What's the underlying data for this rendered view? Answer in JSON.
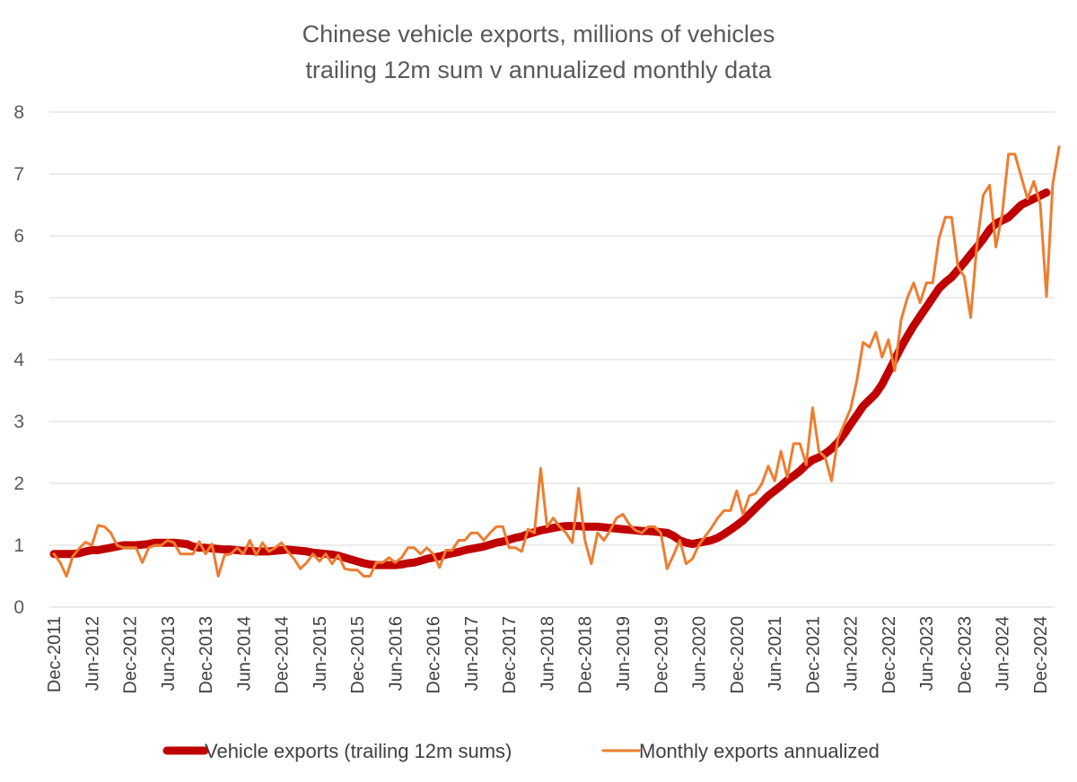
{
  "chart_data": {
    "type": "line",
    "title": [
      "Chinese vehicle exports, millions of vehicles",
      "trailing 12m sum v annualized monthly data"
    ],
    "xlabel": "",
    "ylabel": "",
    "ylim": [
      0,
      8
    ],
    "yticks": [
      "0",
      "1",
      "2",
      "3",
      "4",
      "5",
      "6",
      "7",
      "8"
    ],
    "grid": true,
    "legend_position": "bottom",
    "x_start": "Dec-2011",
    "x_end": "May-2025",
    "x_tick_labels": [
      "Dec-2011",
      "Jun-2012",
      "Dec-2012",
      "Jun-2013",
      "Dec-2013",
      "Jun-2014",
      "Dec-2014",
      "Jun-2015",
      "Dec-2015",
      "Jun-2016",
      "Dec-2016",
      "Jun-2017",
      "Dec-2017",
      "Jun-2018",
      "Dec-2018",
      "Jun-2019",
      "Dec-2019",
      "Jun-2020",
      "Dec-2020",
      "Jun-2021",
      "Dec-2021",
      "Jun-2022",
      "Dec-2022",
      "Jun-2023",
      "Dec-2023",
      "Jun-2024",
      "Dec-2024"
    ],
    "series": [
      {
        "name": "Vehicle exports (trailing 12m sums)",
        "color": "#c00000",
        "line_style": "thick",
        "values": [
          0.86,
          0.86,
          0.86,
          0.86,
          0.87,
          0.9,
          0.92,
          0.92,
          0.94,
          0.96,
          0.98,
          1.0,
          1.0,
          1.0,
          1.01,
          1.02,
          1.04,
          1.04,
          1.04,
          1.04,
          1.03,
          1.02,
          0.98,
          0.96,
          0.96,
          0.95,
          0.94,
          0.93,
          0.93,
          0.92,
          0.91,
          0.91,
          0.9,
          0.9,
          0.9,
          0.91,
          0.92,
          0.93,
          0.92,
          0.91,
          0.9,
          0.88,
          0.87,
          0.86,
          0.85,
          0.83,
          0.8,
          0.77,
          0.74,
          0.71,
          0.69,
          0.68,
          0.68,
          0.68,
          0.68,
          0.69,
          0.71,
          0.72,
          0.75,
          0.78,
          0.8,
          0.82,
          0.85,
          0.87,
          0.89,
          0.92,
          0.94,
          0.96,
          0.98,
          1.01,
          1.04,
          1.06,
          1.09,
          1.12,
          1.14,
          1.18,
          1.21,
          1.24,
          1.26,
          1.28,
          1.3,
          1.31,
          1.31,
          1.31,
          1.3,
          1.3,
          1.3,
          1.29,
          1.28,
          1.27,
          1.26,
          1.25,
          1.24,
          1.23,
          1.23,
          1.22,
          1.21,
          1.2,
          1.15,
          1.08,
          1.04,
          1.02,
          1.04,
          1.06,
          1.08,
          1.12,
          1.18,
          1.25,
          1.32,
          1.4,
          1.5,
          1.6,
          1.7,
          1.8,
          1.88,
          1.96,
          2.05,
          2.12,
          2.2,
          2.3,
          2.38,
          2.42,
          2.48,
          2.56,
          2.66,
          2.8,
          2.95,
          3.1,
          3.25,
          3.35,
          3.45,
          3.6,
          3.8,
          4.0,
          4.2,
          4.38,
          4.55,
          4.7,
          4.85,
          5.0,
          5.15,
          5.25,
          5.33,
          5.45,
          5.57,
          5.7,
          5.82,
          5.95,
          6.1,
          6.2,
          6.25,
          6.3,
          6.4,
          6.5,
          6.55,
          6.6,
          6.65,
          6.7
        ]
      },
      {
        "name": "Monthly exports annualized",
        "color": "#ed7d31",
        "line_style": "thin",
        "values": [
          0.86,
          0.72,
          0.5,
          0.82,
          0.95,
          1.05,
          1.0,
          1.32,
          1.3,
          1.2,
          1.0,
          0.96,
          0.96,
          0.96,
          0.72,
          0.96,
          1.0,
          1.0,
          1.08,
          1.04,
          0.86,
          0.86,
          0.86,
          1.06,
          0.86,
          1.02,
          0.5,
          0.84,
          0.86,
          0.96,
          0.86,
          1.08,
          0.84,
          1.04,
          0.9,
          0.96,
          1.04,
          0.9,
          0.78,
          0.62,
          0.72,
          0.86,
          0.74,
          0.86,
          0.7,
          0.84,
          0.62,
          0.6,
          0.6,
          0.5,
          0.5,
          0.72,
          0.72,
          0.8,
          0.72,
          0.8,
          0.96,
          0.96,
          0.86,
          0.96,
          0.86,
          0.64,
          0.92,
          0.92,
          1.08,
          1.08,
          1.2,
          1.2,
          1.08,
          1.2,
          1.3,
          1.3,
          0.96,
          0.96,
          0.9,
          1.26,
          1.2,
          2.24,
          1.3,
          1.44,
          1.3,
          1.2,
          1.04,
          1.92,
          1.08,
          0.7,
          1.2,
          1.08,
          1.24,
          1.44,
          1.5,
          1.34,
          1.24,
          1.2,
          1.3,
          1.3,
          1.2,
          0.62,
          0.84,
          1.08,
          0.7,
          0.78,
          1.0,
          1.14,
          1.28,
          1.44,
          1.56,
          1.56,
          1.88,
          1.5,
          1.8,
          1.84,
          2.0,
          2.28,
          2.04,
          2.52,
          2.1,
          2.64,
          2.64,
          2.3,
          3.22,
          2.52,
          2.42,
          2.04,
          2.72,
          2.96,
          3.2,
          3.66,
          4.28,
          4.2,
          4.44,
          4.04,
          4.32,
          3.82,
          4.64,
          5.0,
          5.24,
          4.92,
          5.24,
          5.24,
          5.96,
          6.3,
          6.3,
          5.5,
          5.34,
          4.68,
          5.86,
          6.66,
          6.82,
          5.82,
          6.36,
          7.32,
          7.32,
          6.96,
          6.6,
          6.88,
          6.52,
          5.02,
          6.84,
          7.44
        ]
      }
    ]
  }
}
